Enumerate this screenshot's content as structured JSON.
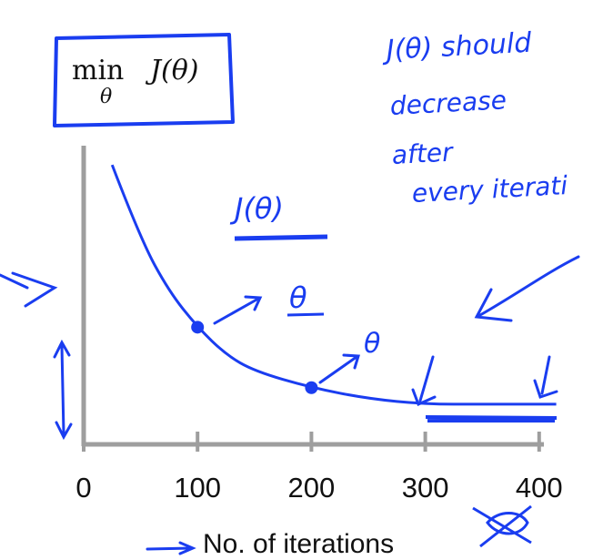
{
  "chart_data": {
    "type": "line",
    "x": [
      25,
      50,
      75,
      100,
      125,
      150,
      200,
      250,
      300,
      350,
      400,
      415
    ],
    "y": [
      0.93,
      0.66,
      0.47,
      0.34,
      0.24,
      0.18,
      0.12,
      0.08,
      0.06,
      0.06,
      0.06,
      0.06
    ],
    "xticks": [
      "0",
      "100",
      "200",
      "300",
      "400"
    ],
    "xlim": [
      0,
      415
    ],
    "ylim": [
      0,
      1
    ],
    "xlabel": "No. of iterations",
    "highlighted_points": [
      {
        "x": 100,
        "y": 0.34
      },
      {
        "x": 200,
        "y": 0.12
      }
    ],
    "grid": false
  },
  "formula": {
    "min": "min",
    "subscript": "θ",
    "function": "J(θ)"
  },
  "annotations": {
    "note_line1": "J(θ) should",
    "note_line2": "decrease",
    "note_line3": "after",
    "note_line4": "every iterati",
    "curve_label": "J(θ)",
    "theta_label_1": "θ",
    "theta_label_2": "θ"
  },
  "colors": {
    "ink": "#1a3df0",
    "axis": "#9e9e9e",
    "text": "#111111"
  }
}
